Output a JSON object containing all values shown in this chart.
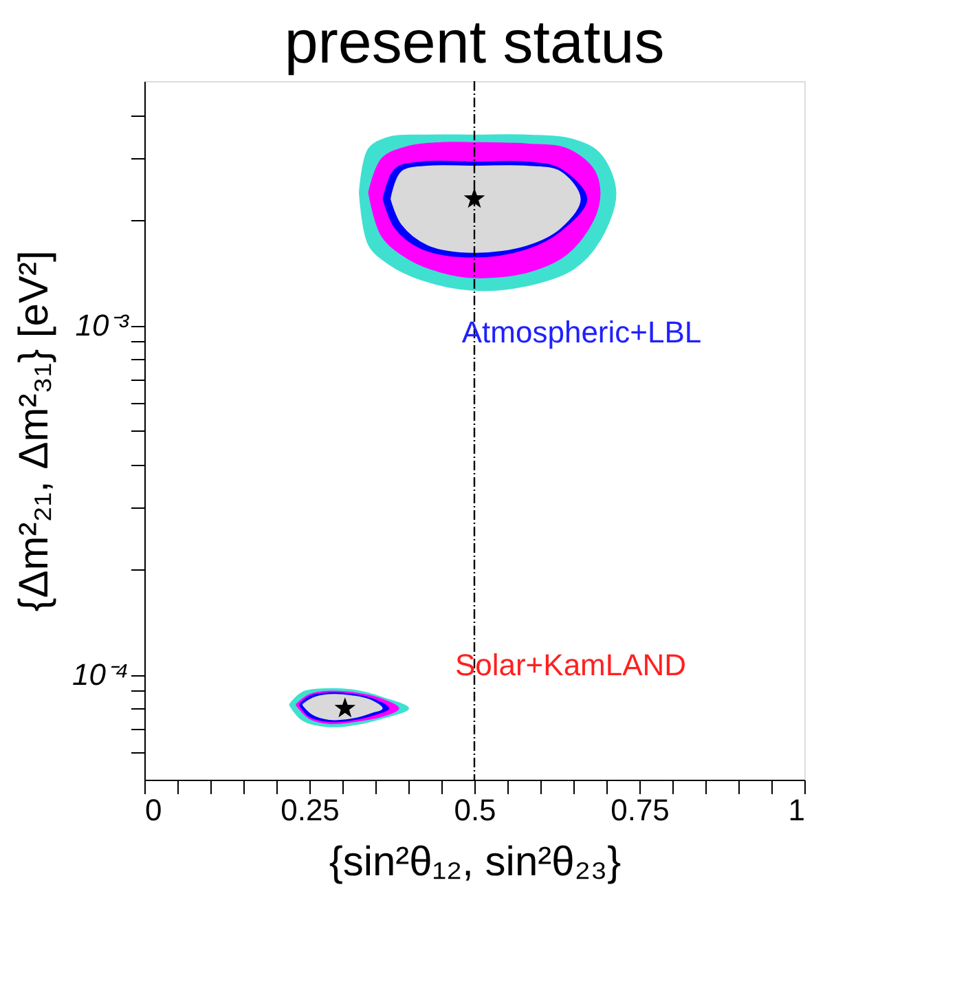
{
  "chart_data": {
    "type": "area",
    "title": "present status",
    "xlabel": "{sin²θ₁₂, sin²θ₂₃}",
    "ylabel": "{Δm²₂₁, Δm²₃₁} [eV²]",
    "log": "y",
    "grid": false,
    "xlim": [
      0,
      1
    ],
    "ylim": [
      5e-05,
      0.005
    ],
    "xticks": [
      0,
      {
        "value": 0.05,
        "label": null
      },
      {
        "value": 0.1,
        "label": null
      },
      {
        "value": 0.15,
        "label": null
      },
      {
        "value": 0.2,
        "label": null
      },
      0.25,
      {
        "value": 0.3,
        "label": null
      },
      {
        "value": 0.35,
        "label": null
      },
      {
        "value": 0.4,
        "label": null
      },
      {
        "value": 0.45,
        "label": null
      },
      0.5,
      {
        "value": 0.55,
        "label": null
      },
      {
        "value": 0.6,
        "label": null
      },
      {
        "value": 0.65,
        "label": null
      },
      {
        "value": 0.7,
        "label": null
      },
      0.75,
      {
        "value": 0.8,
        "label": null
      },
      {
        "value": 0.85,
        "label": null
      },
      {
        "value": 0.9,
        "label": null
      },
      {
        "value": 0.95,
        "label": null
      },
      1
    ],
    "yticks": [
      {
        "value": 6e-05,
        "label": null
      },
      {
        "value": 7e-05,
        "label": null
      },
      {
        "value": 8e-05,
        "label": null
      },
      {
        "value": 9e-05,
        "label": null
      },
      {
        "value": 0.0001,
        "label": "10⁻⁴"
      },
      {
        "value": 0.0002,
        "label": null
      },
      {
        "value": 0.0003,
        "label": null
      },
      {
        "value": 0.0004,
        "label": null
      },
      {
        "value": 0.0005,
        "label": null
      },
      {
        "value": 0.0006,
        "label": null
      },
      {
        "value": 0.0007,
        "label": null
      },
      {
        "value": 0.0008,
        "label": null
      },
      {
        "value": 0.0009,
        "label": null
      },
      {
        "value": 0.001,
        "label": "10⁻³"
      },
      {
        "value": 0.002,
        "label": null
      },
      {
        "value": 0.003,
        "label": null
      },
      {
        "value": 0.004,
        "label": null
      }
    ],
    "series": [
      {
        "color": "#40e0d0",
        "x": [
          0.326,
          0.34,
          0.37,
          0.42,
          0.5,
          0.58,
          0.65,
          0.69,
          0.714,
          0.69,
          0.65,
          0.58,
          0.5,
          0.42,
          0.37,
          0.34,
          0.326
        ],
        "values": [
          0.0024,
          0.0032,
          0.00345,
          0.0035,
          0.0035,
          0.0035,
          0.0034,
          0.0031,
          0.0024,
          0.00175,
          0.00145,
          0.0013,
          0.00126,
          0.00135,
          0.0015,
          0.0017,
          0.0024
        ]
      },
      {
        "color": "#ff00ff",
        "x": [
          0.34,
          0.36,
          0.4,
          0.45,
          0.5,
          0.58,
          0.64,
          0.68,
          0.69,
          0.68,
          0.64,
          0.58,
          0.5,
          0.45,
          0.4,
          0.36,
          0.34
        ],
        "values": [
          0.0024,
          0.003,
          0.00325,
          0.00333,
          0.00333,
          0.0033,
          0.0032,
          0.0028,
          0.0024,
          0.002,
          0.0016,
          0.00142,
          0.00137,
          0.00142,
          0.00155,
          0.0018,
          0.0024
        ]
      },
      {
        "color": "#0000ff",
        "x": [
          0.362,
          0.38,
          0.42,
          0.5,
          0.58,
          0.63,
          0.67,
          0.63,
          0.58,
          0.5,
          0.42,
          0.38,
          0.362
        ],
        "values": [
          0.0023,
          0.0028,
          0.00293,
          0.00293,
          0.00293,
          0.0028,
          0.0023,
          0.00186,
          0.00166,
          0.00157,
          0.00166,
          0.0019,
          0.0023
        ]
      },
      {
        "color": "#d9d9d9",
        "x": [
          0.374,
          0.39,
          0.43,
          0.5,
          0.58,
          0.63,
          0.66,
          0.63,
          0.58,
          0.5,
          0.43,
          0.39,
          0.374
        ],
        "values": [
          0.0023,
          0.00275,
          0.00285,
          0.00285,
          0.00285,
          0.00275,
          0.0023,
          0.0019,
          0.0017,
          0.00162,
          0.0017,
          0.00195,
          0.0023
        ]
      },
      {
        "color": "#40e0d0",
        "x": [
          0.22,
          0.24,
          0.28,
          0.32,
          0.36,
          0.4,
          0.36,
          0.32,
          0.28,
          0.24,
          0.22
        ],
        "values": [
          8.2e-05,
          8.9e-05,
          9.1e-05,
          9e-05,
          8.6e-05,
          8e-05,
          7.5e-05,
          7.2e-05,
          7.1e-05,
          7.4e-05,
          8.2e-05
        ]
      },
      {
        "color": "#ff00ff",
        "x": [
          0.23,
          0.25,
          0.28,
          0.32,
          0.36,
          0.385,
          0.36,
          0.32,
          0.28,
          0.25,
          0.23
        ],
        "values": [
          8.2e-05,
          8.75e-05,
          8.95e-05,
          8.85e-05,
          8.5e-05,
          8e-05,
          7.6e-05,
          7.35e-05,
          7.25e-05,
          7.5e-05,
          8.2e-05
        ]
      },
      {
        "color": "#0000ff",
        "x": [
          0.235,
          0.25,
          0.28,
          0.32,
          0.35,
          0.37,
          0.35,
          0.32,
          0.28,
          0.25,
          0.235
        ],
        "values": [
          8.2e-05,
          8.65e-05,
          8.85e-05,
          8.75e-05,
          8.45e-05,
          8e-05,
          7.7e-05,
          7.45e-05,
          7.35e-05,
          7.6e-05,
          8.2e-05
        ]
      },
      {
        "color": "#d9d9d9",
        "x": [
          0.24,
          0.255,
          0.28,
          0.32,
          0.345,
          0.36,
          0.345,
          0.32,
          0.28,
          0.255,
          0.24
        ],
        "values": [
          8.2e-05,
          8.55e-05,
          8.75e-05,
          8.65e-05,
          8.4e-05,
          8e-05,
          7.8e-05,
          7.55e-05,
          7.45e-05,
          7.7e-05,
          8.2e-05
        ]
      },
      {
        "type": "scatter",
        "marker": "star",
        "color": "#000000",
        "x": [
          0.5,
          0.304
        ],
        "values": [
          0.0023,
          8e-05
        ]
      }
    ],
    "ref_lines": [
      {
        "axis": "x",
        "value": 0.5,
        "line_style": "dashed",
        "color": "#000000"
      }
    ],
    "annotations": [
      "Atmospheric+LBL",
      "Solar+KamLAND"
    ]
  }
}
